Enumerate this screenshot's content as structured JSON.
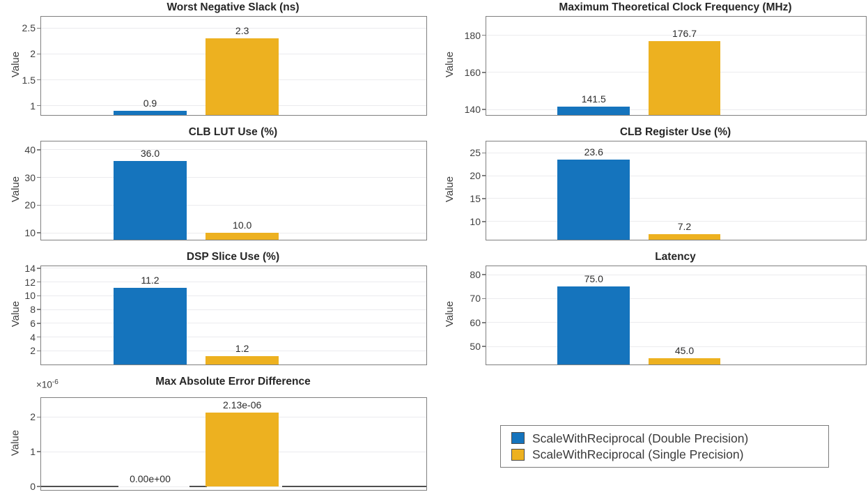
{
  "figure": {
    "background": "#ffffff",
    "ylabel_shared": "Value"
  },
  "colors": {
    "double_precision": "#1574BD",
    "single_precision": "#EDB120",
    "grid": "#ebebee",
    "axis_border": "#7f7f7f",
    "baseline": "#4f4f4f"
  },
  "legend": {
    "position": "bottom-right",
    "items": [
      {
        "label": "ScaleWithReciprocal (Double Precision)",
        "color": "#1574BD"
      },
      {
        "label": "ScaleWithReciprocal (Single Precision)",
        "color": "#EDB120"
      }
    ]
  },
  "chart_data": [
    {
      "type": "bar",
      "title": "Worst Negative Slack (ns)",
      "ylabel": "Value",
      "categories": [
        "ScaleWithReciprocal (Double Precision)",
        "ScaleWithReciprocal (Single Precision)"
      ],
      "values": [
        0.9,
        2.3
      ],
      "bar_labels": [
        "0.9",
        "2.3"
      ],
      "yticks": [
        1,
        1.5,
        2,
        2.5
      ],
      "ytick_labels": [
        "1",
        "1.5",
        "2",
        "2.5"
      ],
      "ylim": [
        0.82,
        2.72
      ],
      "grid": true
    },
    {
      "type": "bar",
      "title": "Maximum Theoretical Clock Frequency (MHz)",
      "ylabel": "Value",
      "categories": [
        "ScaleWithReciprocal (Double Precision)",
        "ScaleWithReciprocal (Single Precision)"
      ],
      "values": [
        141.5,
        176.7
      ],
      "bar_labels": [
        "141.5",
        "176.7"
      ],
      "yticks": [
        140,
        160,
        180
      ],
      "ytick_labels": [
        "140",
        "160",
        "180"
      ],
      "ylim": [
        137,
        190
      ],
      "grid": true
    },
    {
      "type": "bar",
      "title": "CLB LUT Use (%)",
      "ylabel": "Value",
      "categories": [
        "ScaleWithReciprocal (Double Precision)",
        "ScaleWithReciprocal (Single Precision)"
      ],
      "values": [
        36.0,
        10.0
      ],
      "bar_labels": [
        "36.0",
        "10.0"
      ],
      "yticks": [
        10,
        20,
        30,
        40
      ],
      "ytick_labels": [
        "10",
        "20",
        "30",
        "40"
      ],
      "ylim": [
        7.5,
        43
      ],
      "grid": true
    },
    {
      "type": "bar",
      "title": "CLB Register Use (%)",
      "ylabel": "Value",
      "categories": [
        "ScaleWithReciprocal (Double Precision)",
        "ScaleWithReciprocal (Single Precision)"
      ],
      "values": [
        23.6,
        7.2
      ],
      "bar_labels": [
        "23.6",
        "7.2"
      ],
      "yticks": [
        10,
        15,
        20,
        25
      ],
      "ytick_labels": [
        "10",
        "15",
        "20",
        "25"
      ],
      "ylim": [
        6,
        27.5
      ],
      "grid": true
    },
    {
      "type": "bar",
      "title": "DSP Slice Use (%)",
      "ylabel": "Value",
      "categories": [
        "ScaleWithReciprocal (Double Precision)",
        "ScaleWithReciprocal (Single Precision)"
      ],
      "values": [
        11.2,
        1.2
      ],
      "bar_labels": [
        "11.2",
        "1.2"
      ],
      "yticks": [
        2,
        4,
        6,
        8,
        10,
        12,
        14
      ],
      "ytick_labels": [
        "2",
        "4",
        "6",
        "8",
        "10",
        "12",
        "14"
      ],
      "ylim": [
        0,
        14.3
      ],
      "grid": true
    },
    {
      "type": "bar",
      "title": "Latency",
      "ylabel": "Value",
      "categories": [
        "ScaleWithReciprocal (Double Precision)",
        "ScaleWithReciprocal (Single Precision)"
      ],
      "values": [
        75.0,
        45.0
      ],
      "bar_labels": [
        "75.0",
        "45.0"
      ],
      "yticks": [
        50,
        60,
        70,
        80
      ],
      "ytick_labels": [
        "50",
        "60",
        "70",
        "80"
      ],
      "ylim": [
        42.5,
        83.5
      ],
      "grid": true
    },
    {
      "type": "bar",
      "title": "Max Absolute Error Difference",
      "ylabel": "Value",
      "categories": [
        "ScaleWithReciprocal (Double Precision)",
        "ScaleWithReciprocal (Single Precision)"
      ],
      "values": [
        0,
        2.13e-06
      ],
      "bar_labels": [
        "0.00e+00",
        "2.13e-06"
      ],
      "yticks": [
        0,
        1e-06,
        2e-06
      ],
      "ytick_labels": [
        "0",
        "1",
        "2"
      ],
      "ylim": [
        -1e-07,
        2.55e-06
      ],
      "grid": true,
      "zero_baseline": true,
      "exponent": {
        "base": "×10",
        "power": "-6"
      }
    }
  ]
}
